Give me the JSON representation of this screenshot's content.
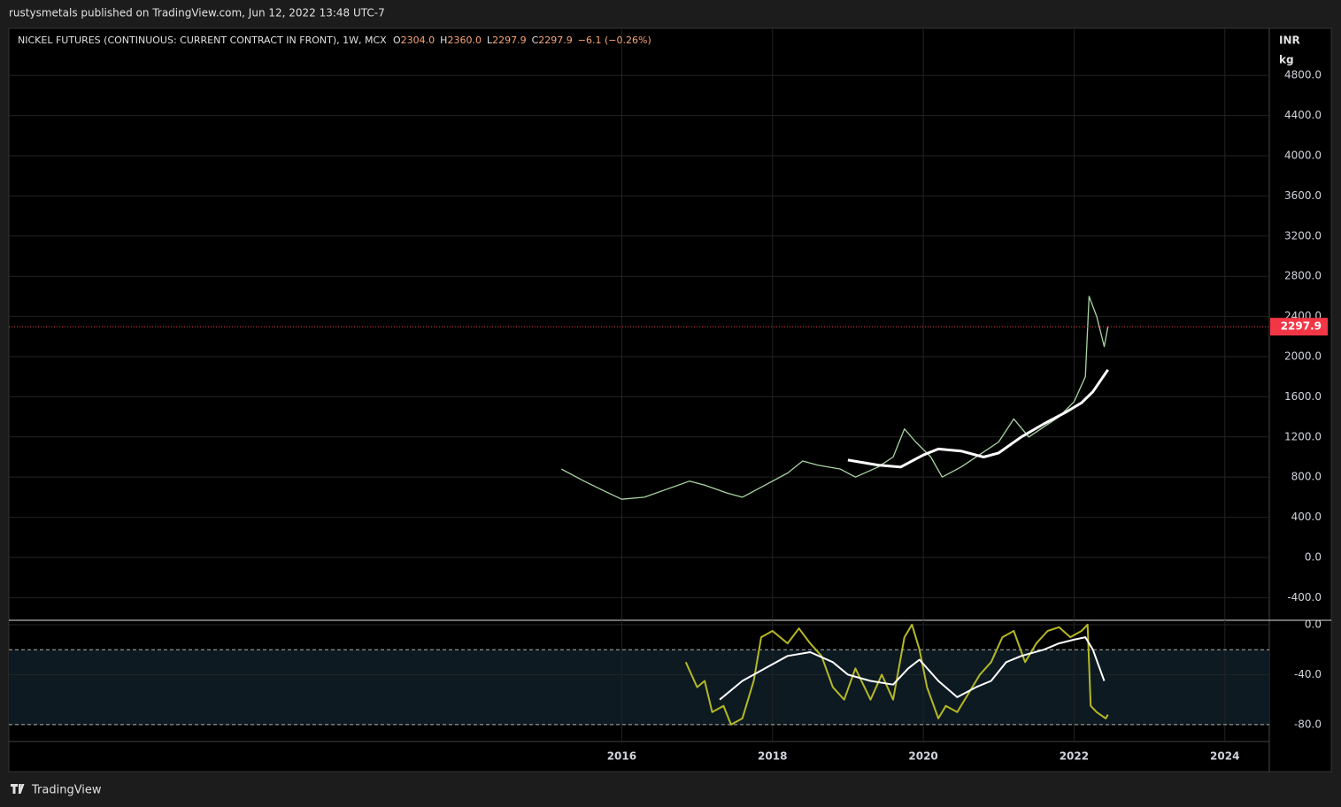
{
  "header": {
    "text": "rustysmetals published on TradingView.com, Jun 12, 2022 13:48 UTC-7"
  },
  "footer": {
    "brand": "TradingView"
  },
  "chart_data": [
    {
      "type": "line",
      "title": "NICKEL FUTURES (CONTINUOUS: CURRENT CONTRACT IN FRONT), 1W, MCX",
      "ohlc": [
        {
          "name": "O",
          "value": 2304,
          "label": "2304.0"
        },
        {
          "name": "H",
          "value": 2360,
          "label": "2360.0"
        },
        {
          "name": "L",
          "value": 2297.9,
          "label": "2297.9"
        },
        {
          "name": "C",
          "value": 2297.9,
          "label": "2297.9"
        }
      ],
      "change": "−6.1 (−0.26%)",
      "unit": [
        "INR",
        "kg"
      ],
      "last_price": 2297.9,
      "last_price_color": "#f23645",
      "xlim": [
        2007.87,
        2024.59
      ],
      "ylim": [
        -617,
        5269
      ],
      "yticks": [
        {
          "value": -400,
          "label": "-400.0"
        },
        {
          "value": 0,
          "label": "0.0"
        },
        {
          "value": 400,
          "label": "400.0"
        },
        {
          "value": 800,
          "label": "800.0"
        },
        {
          "value": 1200,
          "label": "1200.0"
        },
        {
          "value": 1600,
          "label": "1600.0"
        },
        {
          "value": 2000,
          "label": "2000.0"
        },
        {
          "value": 2400,
          "label": "2400.0"
        },
        {
          "value": 2800,
          "label": "2800.0"
        },
        {
          "value": 3200,
          "label": "3200.0"
        },
        {
          "value": 3600,
          "label": "3600.0"
        },
        {
          "value": 4000,
          "label": "4000.0"
        },
        {
          "value": 4400,
          "label": "4400.0"
        },
        {
          "value": 4800,
          "label": "4800.0"
        }
      ],
      "grid": true,
      "series": [
        {
          "color": "#a8d5a2",
          "width": 1.3,
          "x": [
            2015.2,
            2015.5,
            2015.8,
            2016.0,
            2016.3,
            2016.6,
            2016.9,
            2017.1,
            2017.4,
            2017.6,
            2017.9,
            2018.2,
            2018.4,
            2018.6,
            2018.9,
            2019.1,
            2019.4,
            2019.6,
            2019.75,
            2019.9,
            2020.1,
            2020.25,
            2020.5,
            2020.8,
            2021.0,
            2021.2,
            2021.4,
            2021.6,
            2021.8,
            2022.0,
            2022.15,
            2022.2,
            2022.3,
            2022.4,
            2022.45
          ],
          "values": [
            880,
            760,
            650,
            580,
            600,
            680,
            760,
            720,
            640,
            600,
            720,
            840,
            960,
            920,
            880,
            800,
            900,
            1000,
            1280,
            1150,
            1000,
            800,
            900,
            1050,
            1150,
            1380,
            1200,
            1300,
            1400,
            1550,
            1800,
            2600,
            2400,
            2100,
            2297.9
          ]
        },
        {
          "color": "#ffffff",
          "width": 3,
          "x": [
            2019.0,
            2019.4,
            2019.7,
            2020.0,
            2020.2,
            2020.5,
            2020.8,
            2021.0,
            2021.3,
            2021.6,
            2021.9,
            2022.1,
            2022.25,
            2022.45
          ],
          "values": [
            970,
            920,
            900,
            1020,
            1080,
            1060,
            1000,
            1040,
            1200,
            1330,
            1450,
            1540,
            1650,
            1870
          ]
        }
      ]
    },
    {
      "type": "line",
      "xlim": [
        2007.87,
        2024.59
      ],
      "xticks": [
        2016,
        2018,
        2020,
        2022,
        2024
      ],
      "ylim": [
        -93.5,
        3.5
      ],
      "yticks": [
        {
          "value": 0,
          "label": "0.0"
        },
        {
          "value": -40,
          "label": "-40.0"
        },
        {
          "value": -80,
          "label": "-80.0"
        }
      ],
      "levels": [
        -20,
        -80
      ],
      "band_color": "#0d1a22",
      "grid": true,
      "series": [
        {
          "color": "#b5b823",
          "width": 2,
          "x": [
            2016.85,
            2017.0,
            2017.1,
            2017.2,
            2017.35,
            2017.45,
            2017.6,
            2017.75,
            2017.85,
            2018.0,
            2018.2,
            2018.35,
            2018.5,
            2018.65,
            2018.8,
            2018.95,
            2019.1,
            2019.3,
            2019.45,
            2019.6,
            2019.75,
            2019.85,
            2019.95,
            2020.05,
            2020.2,
            2020.3,
            2020.45,
            2020.6,
            2020.75,
            2020.9,
            2021.05,
            2021.2,
            2021.35,
            2021.5,
            2021.65,
            2021.8,
            2021.95,
            2022.1,
            2022.18,
            2022.22,
            2022.3,
            2022.42,
            2022.45
          ],
          "values": [
            -30,
            -50,
            -45,
            -70,
            -65,
            -80,
            -75,
            -45,
            -10,
            -5,
            -15,
            -3,
            -15,
            -25,
            -50,
            -60,
            -35,
            -60,
            -40,
            -60,
            -10,
            0,
            -20,
            -50,
            -75,
            -65,
            -70,
            -55,
            -40,
            -30,
            -10,
            -5,
            -30,
            -15,
            -5,
            -2,
            -10,
            -5,
            0,
            -65,
            -70,
            -75,
            -72
          ]
        },
        {
          "color": "#ffffff",
          "width": 2,
          "x": [
            2017.3,
            2017.6,
            2017.9,
            2018.2,
            2018.5,
            2018.8,
            2019.0,
            2019.3,
            2019.6,
            2019.8,
            2019.95,
            2020.2,
            2020.45,
            2020.7,
            2020.9,
            2021.1,
            2021.3,
            2021.6,
            2021.8,
            2022.0,
            2022.15,
            2022.25,
            2022.4
          ],
          "values": [
            -60,
            -45,
            -35,
            -25,
            -22,
            -30,
            -40,
            -45,
            -48,
            -35,
            -28,
            -45,
            -58,
            -50,
            -45,
            -30,
            -25,
            -20,
            -15,
            -12,
            -10,
            -20,
            -45
          ]
        }
      ]
    }
  ]
}
